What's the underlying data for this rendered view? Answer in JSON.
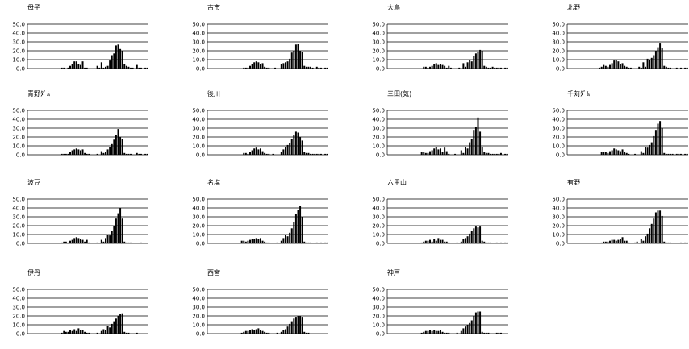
{
  "chart_data": [
    {
      "type": "bar",
      "title": "母子",
      "ylim": [
        0,
        50
      ],
      "yticks": [
        "50.0",
        "40.0",
        "30.0",
        "20.0",
        "10.0",
        "0.0"
      ],
      "values": [
        0,
        0,
        0,
        0,
        0,
        0,
        0,
        0,
        0,
        0,
        0,
        0,
        0,
        0,
        0,
        0,
        1,
        1,
        0,
        1,
        3,
        5,
        8,
        8,
        5,
        4,
        8,
        1,
        1,
        0,
        0,
        0,
        0,
        3,
        1,
        7,
        1,
        2,
        3,
        9,
        15,
        17,
        26,
        27,
        22,
        20,
        5,
        3,
        2,
        1,
        1,
        0,
        4,
        1,
        1,
        0,
        1,
        1
      ]
    },
    {
      "type": "bar",
      "title": "古市",
      "ylim": [
        0,
        50
      ],
      "yticks": [
        "50.0",
        "40.0",
        "30.0",
        "20.0",
        "10.0",
        "0.0"
      ],
      "values": [
        0,
        0,
        0,
        0,
        0,
        0,
        0,
        0,
        0,
        0,
        0,
        0,
        0,
        0,
        0,
        0,
        0,
        1,
        1,
        1,
        3,
        5,
        7,
        8,
        7,
        5,
        6,
        2,
        1,
        1,
        0,
        0,
        1,
        0,
        0,
        5,
        6,
        7,
        8,
        11,
        18,
        20,
        27,
        28,
        20,
        19,
        3,
        2,
        2,
        2,
        1,
        0,
        2,
        1,
        1,
        0,
        1,
        1
      ]
    },
    {
      "type": "bar",
      "title": "大島",
      "ylim": [
        0,
        50
      ],
      "yticks": [
        "50.0",
        "40.0",
        "30.0",
        "20.0",
        "10.0",
        "0.0"
      ],
      "values": [
        0,
        0,
        0,
        0,
        0,
        0,
        0,
        0,
        0,
        0,
        0,
        0,
        0,
        0,
        0,
        0,
        0,
        2,
        2,
        1,
        2,
        3,
        5,
        6,
        4,
        5,
        4,
        3,
        1,
        3,
        1,
        0,
        0,
        0,
        1,
        0,
        6,
        2,
        7,
        10,
        8,
        14,
        17,
        19,
        21,
        20,
        3,
        2,
        1,
        1,
        2,
        1,
        1,
        1,
        1,
        0,
        1,
        1
      ]
    },
    {
      "type": "bar",
      "title": "北野",
      "ylim": [
        0,
        50
      ],
      "yticks": [
        "50.0",
        "40.0",
        "30.0",
        "20.0",
        "10.0",
        "0.0"
      ],
      "values": [
        0,
        0,
        0,
        0,
        0,
        0,
        0,
        0,
        0,
        0,
        0,
        0,
        0,
        0,
        0,
        1,
        2,
        4,
        3,
        2,
        4,
        6,
        9,
        10,
        8,
        5,
        6,
        3,
        2,
        1,
        1,
        0,
        0,
        0,
        2,
        1,
        7,
        2,
        11,
        10,
        12,
        15,
        20,
        24,
        29,
        23,
        3,
        2,
        1,
        1,
        0,
        0,
        1,
        0,
        1,
        0,
        1,
        1
      ]
    },
    {
      "type": "bar",
      "title": "青野ﾀﾞﾑ",
      "ylim": [
        0,
        50
      ],
      "yticks": [
        "50.0",
        "40.0",
        "30.0",
        "20.0",
        "10.0",
        "0.0"
      ],
      "values": [
        0,
        0,
        0,
        0,
        0,
        0,
        0,
        0,
        0,
        0,
        0,
        0,
        0,
        0,
        0,
        0,
        1,
        1,
        1,
        1,
        3,
        5,
        6,
        7,
        6,
        5,
        6,
        2,
        1,
        1,
        0,
        0,
        0,
        1,
        0,
        4,
        2,
        3,
        6,
        9,
        12,
        17,
        22,
        29,
        20,
        18,
        2,
        1,
        1,
        1,
        0,
        0,
        2,
        1,
        1,
        0,
        1,
        1
      ]
    },
    {
      "type": "bar",
      "title": "後川",
      "ylim": [
        0,
        50
      ],
      "yticks": [
        "50.0",
        "40.0",
        "30.0",
        "20.0",
        "10.0",
        "0.0"
      ],
      "values": [
        0,
        0,
        0,
        0,
        0,
        0,
        0,
        0,
        0,
        0,
        0,
        0,
        0,
        0,
        0,
        0,
        0,
        2,
        2,
        1,
        3,
        5,
        7,
        8,
        6,
        7,
        4,
        2,
        1,
        1,
        0,
        1,
        0,
        0,
        0,
        3,
        6,
        9,
        11,
        13,
        18,
        22,
        26,
        25,
        20,
        16,
        3,
        2,
        2,
        1,
        1,
        1,
        1,
        1,
        1,
        0,
        1,
        1
      ]
    },
    {
      "type": "bar",
      "title": "三田(気)",
      "ylim": [
        0,
        50
      ],
      "yticks": [
        "50.0",
        "40.0",
        "30.0",
        "20.0",
        "10.0",
        "0.0"
      ],
      "values": [
        0,
        0,
        0,
        0,
        0,
        0,
        0,
        0,
        0,
        0,
        0,
        0,
        0,
        0,
        0,
        0,
        3,
        3,
        2,
        2,
        4,
        5,
        7,
        9,
        6,
        7,
        3,
        8,
        4,
        1,
        0,
        0,
        1,
        0,
        0,
        5,
        2,
        9,
        7,
        14,
        18,
        28,
        31,
        42,
        26,
        9,
        3,
        2,
        2,
        1,
        1,
        1,
        1,
        1,
        2,
        0,
        1,
        1
      ]
    },
    {
      "type": "bar",
      "title": "千苅ﾀﾞﾑ",
      "ylim": [
        0,
        50
      ],
      "yticks": [
        "50.0",
        "40.0",
        "30.0",
        "20.0",
        "10.0",
        "0.0"
      ],
      "values": [
        0,
        0,
        0,
        0,
        0,
        0,
        0,
        0,
        0,
        0,
        0,
        0,
        0,
        0,
        0,
        0,
        3,
        3,
        3,
        2,
        4,
        5,
        7,
        6,
        5,
        4,
        6,
        3,
        2,
        1,
        0,
        0,
        1,
        0,
        0,
        4,
        2,
        9,
        8,
        11,
        14,
        21,
        28,
        35,
        38,
        30,
        2,
        1,
        1,
        1,
        1,
        0,
        1,
        1,
        1,
        0,
        1,
        1
      ]
    },
    {
      "type": "bar",
      "title": "波豆",
      "ylim": [
        0,
        50
      ],
      "yticks": [
        "50.0",
        "40.0",
        "30.0",
        "20.0",
        "10.0",
        "0.0"
      ],
      "values": [
        0,
        0,
        0,
        0,
        0,
        0,
        0,
        0,
        0,
        0,
        0,
        0,
        0,
        0,
        0,
        0,
        1,
        2,
        2,
        1,
        3,
        4,
        6,
        7,
        6,
        5,
        4,
        2,
        4,
        1,
        0,
        0,
        0,
        1,
        0,
        4,
        2,
        6,
        10,
        9,
        14,
        20,
        28,
        34,
        40,
        28,
        2,
        1,
        1,
        1,
        0,
        0,
        0,
        0,
        1,
        0,
        0,
        0
      ]
    },
    {
      "type": "bar",
      "title": "名塩",
      "ylim": [
        0,
        50
      ],
      "yticks": [
        "50.0",
        "40.0",
        "30.0",
        "20.0",
        "10.0",
        "0.0"
      ],
      "values": [
        0,
        0,
        0,
        0,
        0,
        0,
        0,
        0,
        0,
        0,
        0,
        0,
        0,
        0,
        0,
        0,
        3,
        3,
        2,
        3,
        4,
        5,
        5,
        6,
        5,
        6,
        3,
        2,
        1,
        1,
        0,
        0,
        0,
        1,
        0,
        3,
        6,
        10,
        8,
        12,
        17,
        24,
        33,
        38,
        42,
        30,
        2,
        1,
        1,
        1,
        0,
        0,
        1,
        0,
        1,
        0,
        1,
        1
      ]
    },
    {
      "type": "bar",
      "title": "六甲山",
      "ylim": [
        0,
        50
      ],
      "yticks": [
        "50.0",
        "40.0",
        "30.0",
        "20.0",
        "10.0",
        "0.0"
      ],
      "values": [
        0,
        0,
        0,
        0,
        0,
        0,
        0,
        0,
        0,
        0,
        0,
        0,
        0,
        0,
        0,
        0,
        1,
        2,
        3,
        3,
        4,
        2,
        5,
        3,
        6,
        4,
        4,
        2,
        2,
        1,
        0,
        0,
        0,
        1,
        0,
        2,
        5,
        6,
        8,
        11,
        14,
        17,
        19,
        18,
        19,
        3,
        2,
        1,
        1,
        1,
        0,
        0,
        1,
        0,
        1,
        0,
        1,
        1
      ]
    },
    {
      "type": "bar",
      "title": "有野",
      "ylim": [
        0,
        50
      ],
      "yticks": [
        "50.0",
        "40.0",
        "30.0",
        "20.0",
        "10.0",
        "0.0"
      ],
      "values": [
        0,
        0,
        0,
        0,
        0,
        0,
        0,
        0,
        0,
        0,
        0,
        0,
        0,
        0,
        0,
        0,
        1,
        2,
        2,
        2,
        3,
        4,
        4,
        3,
        4,
        5,
        7,
        3,
        3,
        1,
        0,
        0,
        1,
        2,
        0,
        5,
        3,
        8,
        11,
        17,
        22,
        28,
        35,
        37,
        37,
        31,
        2,
        1,
        1,
        1,
        0,
        0,
        0,
        0,
        1,
        0,
        1,
        1
      ]
    },
    {
      "type": "bar",
      "title": "伊丹",
      "ylim": [
        0,
        50
      ],
      "yticks": [
        "50.0",
        "40.0",
        "30.0",
        "20.0",
        "10.0",
        "0.0"
      ],
      "values": [
        0,
        0,
        0,
        0,
        0,
        0,
        0,
        0,
        0,
        0,
        0,
        0,
        0,
        0,
        0,
        0,
        1,
        3,
        2,
        2,
        4,
        3,
        5,
        3,
        6,
        4,
        4,
        2,
        1,
        1,
        0,
        0,
        0,
        1,
        0,
        3,
        5,
        4,
        9,
        7,
        11,
        14,
        17,
        20,
        22,
        23,
        2,
        1,
        1,
        0,
        0,
        0,
        1,
        0,
        0,
        0,
        0,
        0
      ]
    },
    {
      "type": "bar",
      "title": "西宮",
      "ylim": [
        0,
        50
      ],
      "yticks": [
        "50.0",
        "40.0",
        "30.0",
        "20.0",
        "10.0",
        "0.0"
      ],
      "values": [
        0,
        0,
        0,
        0,
        0,
        0,
        0,
        0,
        0,
        0,
        0,
        0,
        0,
        0,
        0,
        0,
        1,
        2,
        3,
        3,
        4,
        5,
        4,
        5,
        6,
        4,
        3,
        2,
        1,
        1,
        0,
        0,
        0,
        1,
        0,
        2,
        4,
        5,
        8,
        11,
        14,
        17,
        19,
        20,
        20,
        19,
        2,
        1,
        1,
        0,
        0,
        0,
        0,
        0,
        0,
        0,
        0,
        0
      ]
    },
    {
      "type": "bar",
      "title": "神戸",
      "ylim": [
        0,
        50
      ],
      "yticks": [
        "50.0",
        "40.0",
        "30.0",
        "20.0",
        "10.0",
        "0.0"
      ],
      "values": [
        0,
        0,
        0,
        0,
        0,
        0,
        0,
        0,
        0,
        0,
        0,
        0,
        0,
        0,
        0,
        0,
        1,
        2,
        3,
        3,
        4,
        3,
        4,
        3,
        3,
        4,
        2,
        1,
        1,
        1,
        0,
        0,
        0,
        1,
        0,
        3,
        6,
        8,
        10,
        12,
        15,
        20,
        24,
        25,
        25,
        2,
        1,
        1,
        1,
        0,
        0,
        0,
        1,
        1,
        1,
        0,
        0,
        0
      ]
    }
  ]
}
